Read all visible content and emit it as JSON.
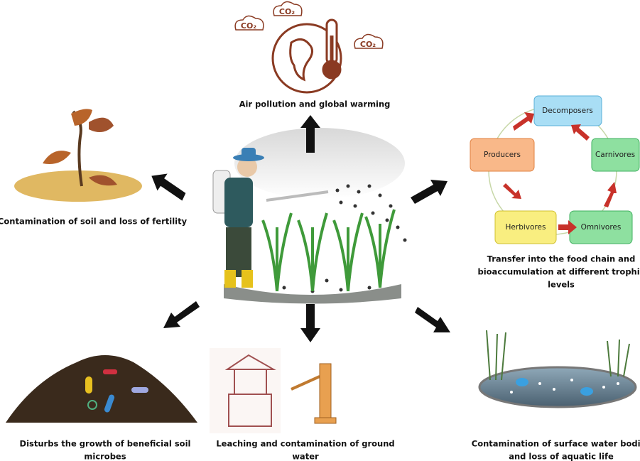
{
  "top": {
    "co2_labels": [
      "CO₂",
      "CO₂",
      "CO₂"
    ],
    "label": "Air pollution and global warming"
  },
  "left": {
    "label": "Contamination of soil and loss of fertility"
  },
  "food_chain": {
    "nodes": [
      "Decomposers",
      "Producers",
      "Carnivores",
      "Herbivores",
      "Omnivores"
    ],
    "label_lines": [
      "Transfer into the food chain and",
      "bioaccumulation at different trophic",
      "levels"
    ]
  },
  "bottom_left": {
    "label_lines": [
      "Disturbs the growth of beneficial soil",
      "microbes"
    ]
  },
  "bottom_center": {
    "label_lines": [
      "Leaching and contamination of ground",
      "water"
    ]
  },
  "bottom_right": {
    "label_lines": [
      "Contamination of surface water bodies",
      "and loss of aquatic life"
    ]
  }
}
